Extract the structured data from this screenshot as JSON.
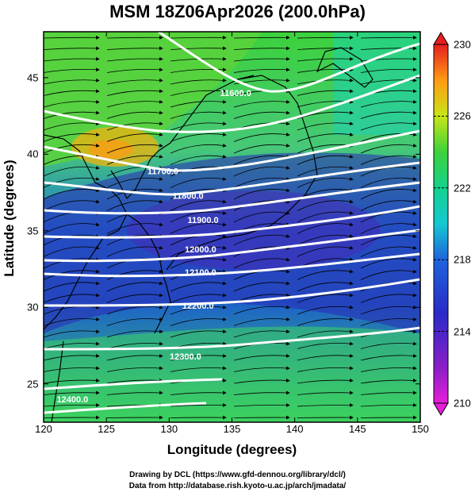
{
  "title": "MSM 18Z06Apr2026 (200.0hPa)",
  "xlabel": "Longitude (degrees)",
  "ylabel": "Latitude  (degrees)",
  "credit_line1": "Drawing by DCL (https://www.gfd-dennou.org/library/dcl/)",
  "credit_line2": "Data from http://database.rish.kyoto-u.ac.jp/arch/jmadata/",
  "x_ticks": [
    "120",
    "125",
    "130",
    "135",
    "140",
    "145",
    "150"
  ],
  "y_ticks": [
    "25",
    "30",
    "35",
    "40",
    "45"
  ],
  "colorbar_ticks": [
    "230",
    "226",
    "222",
    "218",
    "214",
    "210"
  ],
  "colors": {
    "frame": "#000000",
    "contour": "#ffffff",
    "coast": "#000000"
  },
  "chart_data": {
    "type": "heatmap",
    "variable": "temperature with geopotential height contours and wind streamlines",
    "xlim": [
      120,
      150
    ],
    "ylim": [
      22.5,
      48
    ],
    "colorbar_range": [
      210,
      230
    ],
    "contour_labels": [
      {
        "text": "11600.0",
        "lon": 135.3,
        "lat": 43.8
      },
      {
        "text": "11700.0",
        "lon": 129.5,
        "lat": 38.7
      },
      {
        "text": "11800.0",
        "lon": 131.5,
        "lat": 37.1
      },
      {
        "text": "11900.0",
        "lon": 132.7,
        "lat": 35.5
      },
      {
        "text": "12000.0",
        "lon": 132.5,
        "lat": 33.6
      },
      {
        "text": "12100.0",
        "lon": 132.5,
        "lat": 32.1
      },
      {
        "text": "12200.0",
        "lon": 132.3,
        "lat": 29.9
      },
      {
        "text": "12300.0",
        "lon": 131.3,
        "lat": 26.6
      },
      {
        "text": "12400.0",
        "lon": 122.3,
        "lat": 23.8
      }
    ]
  }
}
